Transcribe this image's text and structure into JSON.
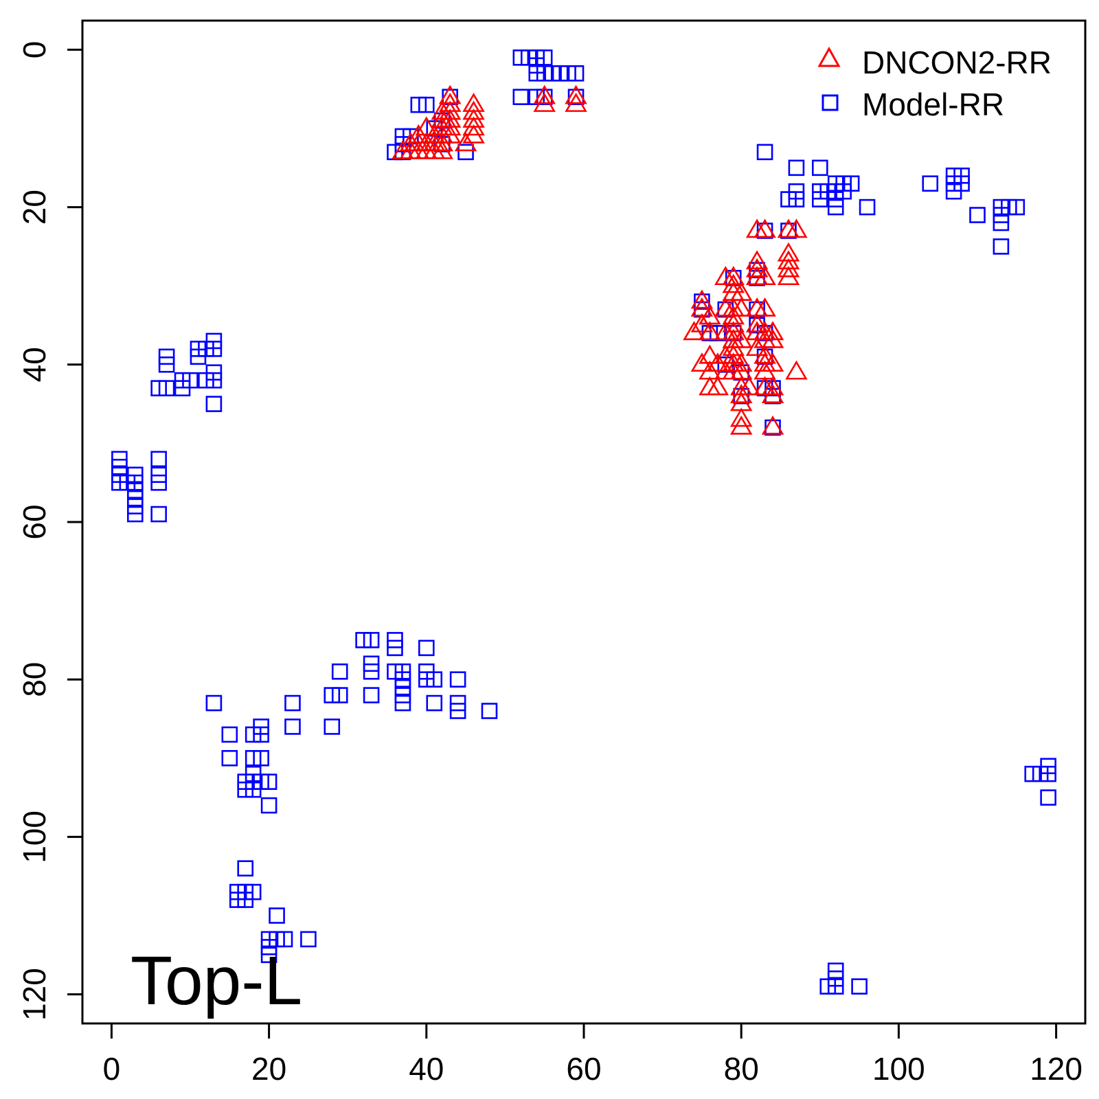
{
  "chart_data": {
    "type": "scatter",
    "title": "",
    "xlabel": "",
    "ylabel": "",
    "xlim": [
      -3.7,
      123.7
    ],
    "ylim": [
      123.7,
      -3.7
    ],
    "y_reversed": true,
    "x_ticks": [
      0,
      20,
      40,
      60,
      80,
      100,
      120
    ],
    "y_ticks": [
      0,
      20,
      40,
      60,
      80,
      100,
      120
    ],
    "grid": false,
    "legend": "top-right",
    "annotation": "Top-L",
    "colors": {
      "axis": "#000000",
      "dncon2": "#ff0000",
      "model": "#0000ff"
    },
    "series": [
      {
        "name": "DNCON2-RR",
        "marker": "triangle",
        "color": "#ff0000",
        "points": [
          [
            37,
            13
          ],
          [
            38,
            12
          ],
          [
            38,
            13
          ],
          [
            39,
            11
          ],
          [
            39,
            12
          ],
          [
            39,
            13
          ],
          [
            40,
            10
          ],
          [
            40,
            12
          ],
          [
            40,
            13
          ],
          [
            41,
            11
          ],
          [
            41,
            12
          ],
          [
            41,
            13
          ],
          [
            42,
            8
          ],
          [
            42,
            9
          ],
          [
            42,
            10
          ],
          [
            42,
            11
          ],
          [
            42,
            12
          ],
          [
            42,
            13
          ],
          [
            43,
            6
          ],
          [
            43,
            7
          ],
          [
            43,
            8
          ],
          [
            43,
            9
          ],
          [
            43,
            10
          ],
          [
            43,
            11
          ],
          [
            45,
            12
          ],
          [
            46,
            7
          ],
          [
            46,
            8
          ],
          [
            46,
            9
          ],
          [
            46,
            10
          ],
          [
            46,
            11
          ],
          [
            55,
            6
          ],
          [
            55,
            7
          ],
          [
            59,
            6
          ],
          [
            59,
            7
          ],
          [
            74,
            36
          ],
          [
            75,
            32
          ],
          [
            75,
            33
          ],
          [
            75,
            35
          ],
          [
            75,
            40
          ],
          [
            76,
            34
          ],
          [
            76,
            36
          ],
          [
            76,
            39
          ],
          [
            76,
            41
          ],
          [
            76,
            43
          ],
          [
            77,
            40
          ],
          [
            77,
            43
          ],
          [
            78,
            29
          ],
          [
            78,
            33
          ],
          [
            78,
            36
          ],
          [
            78,
            39
          ],
          [
            78,
            41
          ],
          [
            79,
            29
          ],
          [
            79,
            30
          ],
          [
            79,
            31
          ],
          [
            79,
            33
          ],
          [
            79,
            34
          ],
          [
            79,
            35
          ],
          [
            79,
            36
          ],
          [
            79,
            37
          ],
          [
            79,
            38
          ],
          [
            79,
            39
          ],
          [
            79,
            40
          ],
          [
            79,
            41
          ],
          [
            80,
            31
          ],
          [
            80,
            33
          ],
          [
            80,
            37
          ],
          [
            80,
            40
          ],
          [
            80,
            41
          ],
          [
            80,
            43
          ],
          [
            80,
            44
          ],
          [
            80,
            45
          ],
          [
            80,
            47
          ],
          [
            80,
            48
          ],
          [
            81,
            43
          ],
          [
            82,
            23
          ],
          [
            82,
            27
          ],
          [
            82,
            28
          ],
          [
            82,
            29
          ],
          [
            82,
            33
          ],
          [
            82,
            35
          ],
          [
            82,
            36
          ],
          [
            82,
            38
          ],
          [
            83,
            23
          ],
          [
            83,
            29
          ],
          [
            83,
            33
          ],
          [
            83,
            36
          ],
          [
            83,
            37
          ],
          [
            83,
            39
          ],
          [
            83,
            40
          ],
          [
            83,
            41
          ],
          [
            83,
            43
          ],
          [
            84,
            36
          ],
          [
            84,
            37
          ],
          [
            84,
            40
          ],
          [
            84,
            43
          ],
          [
            84,
            44
          ],
          [
            84,
            48
          ],
          [
            86,
            23
          ],
          [
            86,
            26
          ],
          [
            86,
            27
          ],
          [
            86,
            28
          ],
          [
            86,
            29
          ],
          [
            87,
            23
          ],
          [
            87,
            41
          ]
        ]
      },
      {
        "name": "Model-RR",
        "marker": "square",
        "color": "#0000ff",
        "points": [
          [
            52,
            1
          ],
          [
            53,
            1
          ],
          [
            54,
            1
          ],
          [
            54,
            2
          ],
          [
            55,
            1
          ],
          [
            54,
            3
          ],
          [
            55,
            3
          ],
          [
            56,
            3
          ],
          [
            57,
            3
          ],
          [
            58,
            3
          ],
          [
            59,
            3
          ],
          [
            52,
            6
          ],
          [
            54,
            6
          ],
          [
            55,
            6
          ],
          [
            59,
            6
          ],
          [
            39,
            7
          ],
          [
            40,
            7
          ],
          [
            37,
            11
          ],
          [
            37,
            12
          ],
          [
            38,
            11
          ],
          [
            36,
            13
          ],
          [
            37,
            13
          ],
          [
            41,
            10
          ],
          [
            42,
            9
          ],
          [
            43,
            6
          ],
          [
            42,
            12
          ],
          [
            45,
            13
          ],
          [
            83,
            13
          ],
          [
            87,
            15
          ],
          [
            90,
            15
          ],
          [
            87,
            18
          ],
          [
            86,
            19
          ],
          [
            87,
            19
          ],
          [
            90,
            18
          ],
          [
            90,
            19
          ],
          [
            91,
            18
          ],
          [
            92,
            17
          ],
          [
            93,
            17
          ],
          [
            94,
            17
          ],
          [
            92,
            18
          ],
          [
            93,
            18
          ],
          [
            92,
            19
          ],
          [
            92,
            20
          ],
          [
            96,
            20
          ],
          [
            104,
            17
          ],
          [
            107,
            16
          ],
          [
            108,
            16
          ],
          [
            107,
            17
          ],
          [
            108,
            17
          ],
          [
            107,
            18
          ],
          [
            110,
            21
          ],
          [
            113,
            20
          ],
          [
            113,
            21
          ],
          [
            113,
            22
          ],
          [
            113,
            25
          ],
          [
            114,
            20
          ],
          [
            115,
            20
          ],
          [
            83,
            23
          ],
          [
            86,
            23
          ],
          [
            82,
            28
          ],
          [
            82,
            29
          ],
          [
            79,
            29
          ],
          [
            75,
            32
          ],
          [
            75,
            33
          ],
          [
            76,
            36
          ],
          [
            78,
            33
          ],
          [
            82,
            33
          ],
          [
            82,
            35
          ],
          [
            77,
            36
          ],
          [
            79,
            36
          ],
          [
            83,
            36
          ],
          [
            83,
            39
          ],
          [
            78,
            40
          ],
          [
            80,
            41
          ],
          [
            80,
            44
          ],
          [
            83,
            43
          ],
          [
            84,
            43
          ],
          [
            84,
            44
          ],
          [
            84,
            48
          ],
          [
            6,
            43
          ],
          [
            7,
            43
          ],
          [
            7,
            39
          ],
          [
            7,
            40
          ],
          [
            9,
            42
          ],
          [
            9,
            43
          ],
          [
            10,
            42
          ],
          [
            11,
            38
          ],
          [
            11,
            39
          ],
          [
            12,
            38
          ],
          [
            12,
            42
          ],
          [
            13,
            37
          ],
          [
            13,
            38
          ],
          [
            13,
            41
          ],
          [
            13,
            42
          ],
          [
            13,
            45
          ],
          [
            1,
            52
          ],
          [
            1,
            53
          ],
          [
            1,
            54
          ],
          [
            1,
            55
          ],
          [
            2,
            55
          ],
          [
            3,
            54
          ],
          [
            3,
            55
          ],
          [
            3,
            56
          ],
          [
            3,
            57
          ],
          [
            3,
            58
          ],
          [
            3,
            59
          ],
          [
            6,
            52
          ],
          [
            6,
            54
          ],
          [
            6,
            55
          ],
          [
            6,
            59
          ],
          [
            32,
            75
          ],
          [
            33,
            75
          ],
          [
            33,
            78
          ],
          [
            33,
            79
          ],
          [
            33,
            82
          ],
          [
            36,
            75
          ],
          [
            36,
            76
          ],
          [
            36,
            79
          ],
          [
            37,
            79
          ],
          [
            37,
            80
          ],
          [
            37,
            81
          ],
          [
            37,
            82
          ],
          [
            37,
            83
          ],
          [
            40,
            76
          ],
          [
            40,
            79
          ],
          [
            40,
            80
          ],
          [
            41,
            80
          ],
          [
            41,
            83
          ],
          [
            44,
            80
          ],
          [
            44,
            83
          ],
          [
            44,
            84
          ],
          [
            48,
            84
          ],
          [
            28,
            82
          ],
          [
            28,
            86
          ],
          [
            29,
            79
          ],
          [
            29,
            82
          ],
          [
            23,
            83
          ],
          [
            23,
            86
          ],
          [
            13,
            83
          ],
          [
            15,
            87
          ],
          [
            15,
            90
          ],
          [
            18,
            87
          ],
          [
            18,
            90
          ],
          [
            18,
            92
          ],
          [
            19,
            86
          ],
          [
            19,
            87
          ],
          [
            19,
            90
          ],
          [
            17,
            93
          ],
          [
            17,
            94
          ],
          [
            18,
            93
          ],
          [
            18,
            94
          ],
          [
            19,
            93
          ],
          [
            20,
            93
          ],
          [
            20,
            96
          ],
          [
            17,
            104
          ],
          [
            16,
            107
          ],
          [
            16,
            108
          ],
          [
            17,
            107
          ],
          [
            17,
            108
          ],
          [
            18,
            107
          ],
          [
            21,
            110
          ],
          [
            20,
            113
          ],
          [
            20,
            114
          ],
          [
            20,
            115
          ],
          [
            21,
            113
          ],
          [
            22,
            113
          ],
          [
            25,
            113
          ],
          [
            117,
            92
          ],
          [
            118,
            92
          ],
          [
            119,
            91
          ],
          [
            119,
            92
          ],
          [
            119,
            95
          ],
          [
            91,
            119
          ],
          [
            92,
            117
          ],
          [
            92,
            118
          ],
          [
            92,
            119
          ],
          [
            95,
            119
          ]
        ]
      }
    ]
  }
}
